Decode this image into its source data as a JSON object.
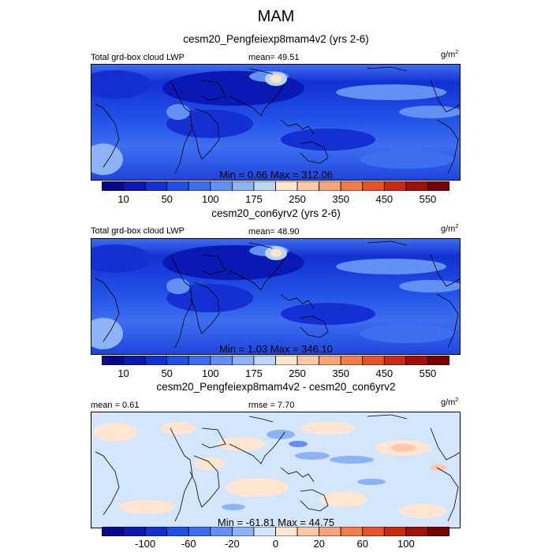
{
  "figure": {
    "title": "MAM"
  },
  "panels": [
    {
      "title": "cesm20_Pengfeiexp8mam4v2 (yrs 2-6)",
      "left_label": "Total grd-box cloud LWP",
      "center_label": "mean=  49.51",
      "units_base": "g/m",
      "units_exp": "2",
      "min_max": "Min =   0.66 Max = 312.06",
      "colorbar": "abs"
    },
    {
      "title": "cesm20_con6yrv2 (yrs 2-6)",
      "left_label": "Total grd-box cloud LWP",
      "center_label": "mean=  48.90",
      "units_base": "g/m",
      "units_exp": "2",
      "min_max": "Min =   1.03 Max = 346.10",
      "colorbar": "abs"
    },
    {
      "title": "cesm20_Pengfeiexp8mam4v2 - cesm20_con6yrv2",
      "left_label": "mean =   0.61",
      "center_label": "rmse =   7.70",
      "units_base": "g/m",
      "units_exp": "2",
      "min_max": "Min = -61.81 Max =  44.75",
      "colorbar": "diff"
    }
  ],
  "colorbars": {
    "abs": {
      "colors": [
        "#08088c",
        "#0a18b4",
        "#1430d2",
        "#2050e6",
        "#3e6ef0",
        "#6290f4",
        "#8eb2f6",
        "#bcd6fa",
        "#ffe4cc",
        "#fcc8a8",
        "#f8a478",
        "#f47c4a",
        "#e85228",
        "#c82a12",
        "#a01006",
        "#780000"
      ],
      "tick_labels": [
        "10",
        "50",
        "100",
        "175",
        "250",
        "350",
        "450",
        "550"
      ],
      "tick_positions": [
        1,
        3,
        5,
        7,
        9,
        11,
        13,
        15
      ]
    },
    "diff": {
      "colors": [
        "#08088c",
        "#0a18b4",
        "#1430d2",
        "#2050e6",
        "#3e6ef0",
        "#6290f4",
        "#8eb2f6",
        "#d4e6fc",
        "#ffe6d2",
        "#fcc8a8",
        "#f8a478",
        "#f47c4a",
        "#e85228",
        "#c82a12",
        "#a01006",
        "#780000"
      ],
      "tick_labels": [
        "-100",
        "-60",
        "-20",
        "0",
        "20",
        "60",
        "100"
      ],
      "tick_positions": [
        2,
        4,
        6,
        8,
        10,
        12,
        14
      ]
    }
  }
}
